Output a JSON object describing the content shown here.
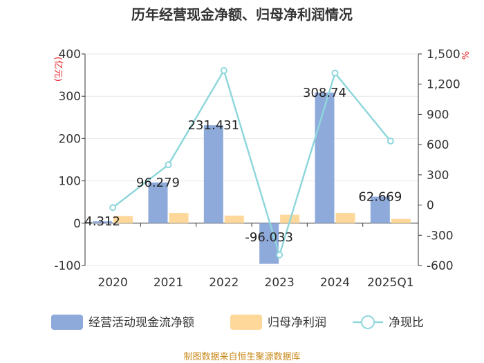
{
  "chart_data": {
    "type": "bar",
    "title": "历年经营现金净额、归母净利润情况",
    "categories": [
      "2020",
      "2021",
      "2022",
      "2023",
      "2024",
      "2025Q1"
    ],
    "left_axis": {
      "unit": "(亿元)",
      "ylim": [
        -100,
        400
      ],
      "ticks": [
        -100,
        0,
        100,
        200,
        300,
        400
      ]
    },
    "right_axis": {
      "unit": "%",
      "ylim": [
        -600,
        1500
      ],
      "ticks": [
        -600,
        -300,
        0,
        300,
        600,
        900,
        1200,
        1500
      ],
      "tick_labels": [
        "-600",
        "-300",
        "0",
        "300",
        "600",
        "900",
        "1,200",
        "1,500"
      ]
    },
    "series": [
      {
        "name": "经营活动现金流净额",
        "axis": "left",
        "kind": "bar",
        "color": "#8eaadb",
        "values": [
          4.312,
          96.279,
          231.431,
          -96.033,
          308.74,
          62.669
        ],
        "labels": [
          "4.312",
          "96.279",
          "231.431",
          "-96.033",
          "308.74",
          "62.669"
        ]
      },
      {
        "name": "归母净利润",
        "axis": "left",
        "kind": "bar",
        "color": "#fdd89a",
        "values": [
          17,
          24,
          18,
          20,
          24,
          10
        ]
      },
      {
        "name": "净现比",
        "axis": "right",
        "kind": "line",
        "color": "#8fd7dc",
        "values": [
          -25,
          400,
          1335,
          -495,
          1310,
          635
        ]
      }
    ],
    "source": "制图数据来自恒生聚源数据库"
  }
}
